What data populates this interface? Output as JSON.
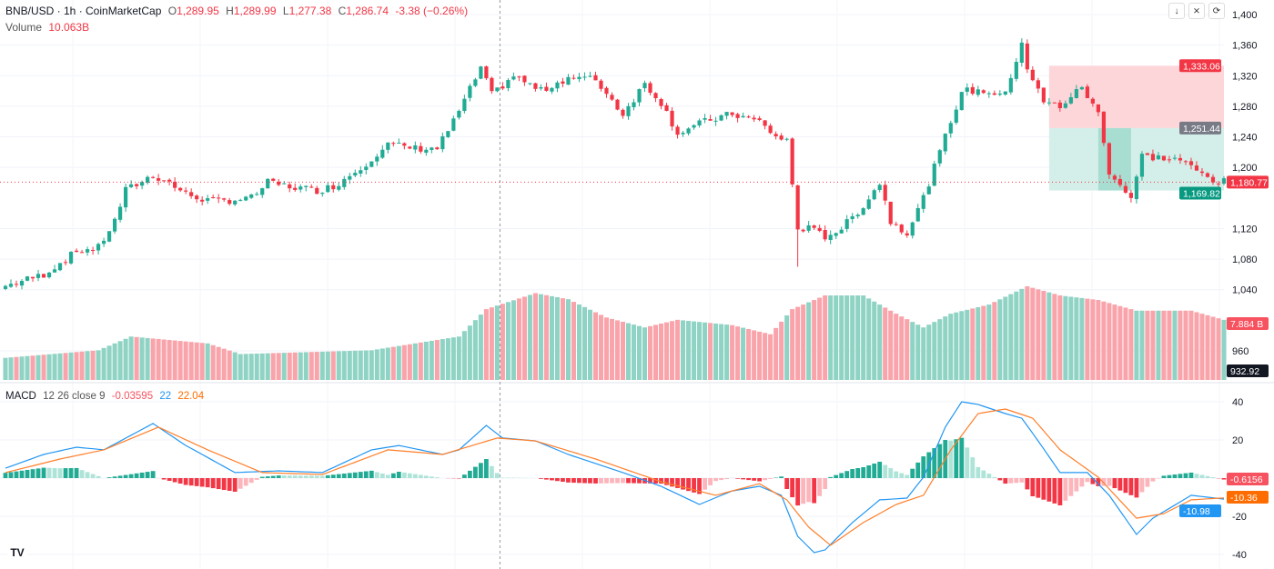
{
  "header": {
    "symbol": "BNB/USD · 1h · CoinMarketCap",
    "o_label": "O",
    "o": "1,289.95",
    "h_label": "H",
    "h": "1,289.99",
    "l_label": "L",
    "l": "1,277.38",
    "c_label": "C",
    "c": "1,286.74",
    "change": "-3.38 (−0.26%)",
    "volume_label": "Volume",
    "volume": "10.063B"
  },
  "macd_legend": {
    "label": "MACD",
    "params": "12 26 close 9",
    "hist": "-0.03595",
    "macd": "22",
    "signal": "22.04"
  },
  "toolbar": {
    "icons": [
      "arrow-down-icon",
      "collapse-icon",
      "refresh-icon"
    ]
  },
  "logo": "TV",
  "colors": {
    "up": "#22ab94",
    "down": "#f23645",
    "vol_up": "#8fd3c4",
    "vol_down": "#f9a3aa",
    "macd": "#2196f3",
    "signal": "#ff7f2a",
    "profit": "#d4efe9",
    "loss": "#fcd6d9"
  },
  "chart_data": [
    {
      "type": "candlestick",
      "title": "BNB/USD 1h",
      "ylim": [
        935,
        1410
      ],
      "yticks": [
        960,
        1040,
        1080,
        1120,
        1200,
        1240,
        1280,
        1320,
        1360,
        1400
      ],
      "ytick_labels": [
        "960",
        "1,040",
        "1,080",
        "1,120",
        "1,200",
        "1,240",
        "1,280",
        "1,320",
        "1,360",
        "1,400"
      ],
      "candles": 224,
      "close_keypoints": [
        [
          0,
          1045
        ],
        [
          7,
          1060
        ],
        [
          13,
          1090
        ],
        [
          17,
          1095
        ],
        [
          20,
          1130
        ],
        [
          22,
          1170
        ],
        [
          27,
          1190
        ],
        [
          30,
          1180
        ],
        [
          33,
          1165
        ],
        [
          38,
          1155
        ],
        [
          45,
          1160
        ],
        [
          48,
          1180
        ],
        [
          52,
          1175
        ],
        [
          57,
          1170
        ],
        [
          60,
          1175
        ],
        [
          65,
          1200
        ],
        [
          70,
          1230
        ],
        [
          75,
          1225
        ],
        [
          79,
          1225
        ],
        [
          82,
          1260
        ],
        [
          87,
          1330
        ],
        [
          89,
          1295
        ],
        [
          93,
          1320
        ],
        [
          98,
          1300
        ],
        [
          103,
          1318
        ],
        [
          108,
          1315
        ],
        [
          113,
          1270
        ],
        [
          117,
          1310
        ],
        [
          120,
          1285
        ],
        [
          123,
          1245
        ],
        [
          128,
          1260
        ],
        [
          133,
          1270
        ],
        [
          138,
          1260
        ],
        [
          141,
          1240
        ],
        [
          143,
          1235
        ],
        [
          145,
          1120
        ],
        [
          147,
          1120
        ],
        [
          150,
          1110
        ],
        [
          153,
          1120
        ],
        [
          157,
          1150
        ],
        [
          160,
          1180
        ],
        [
          162,
          1130
        ],
        [
          165,
          1115
        ],
        [
          168,
          1160
        ],
        [
          172,
          1240
        ],
        [
          175,
          1300
        ],
        [
          179,
          1300
        ],
        [
          183,
          1295
        ],
        [
          186,
          1365
        ],
        [
          187,
          1330
        ],
        [
          190,
          1285
        ],
        [
          193,
          1280
        ],
        [
          197,
          1305
        ],
        [
          200,
          1270
        ],
        [
          202,
          1195
        ],
        [
          206,
          1160
        ],
        [
          208,
          1215
        ],
        [
          212,
          1212
        ],
        [
          215,
          1210
        ],
        [
          218,
          1195
        ],
        [
          222,
          1181
        ]
      ],
      "position": {
        "start": 191,
        "end": 223,
        "stop": 1333.06,
        "entry": 1251.44,
        "target": 1169.82,
        "stop_label": "1,333.06",
        "entry_label": "1,251.44",
        "target_label": "1,169.82"
      },
      "last_price": 1180.77,
      "last_price_label": "1,180.77",
      "crosshair_index": 90.5,
      "crosshair_label": "932.92"
    },
    {
      "type": "bar",
      "title": "Volume (B)",
      "last_label": "7.884 B",
      "keypoints": [
        [
          0,
          2.9
        ],
        [
          17,
          3.9
        ],
        [
          23,
          5.7
        ],
        [
          37,
          4.8
        ],
        [
          43,
          3.4
        ],
        [
          67,
          3.9
        ],
        [
          83,
          5.7
        ],
        [
          88,
          9.3
        ],
        [
          97,
          11.4
        ],
        [
          103,
          10.6
        ],
        [
          110,
          8.2
        ],
        [
          117,
          6.9
        ],
        [
          123,
          7.9
        ],
        [
          133,
          7.2
        ],
        [
          140,
          6.0
        ],
        [
          144,
          9.3
        ],
        [
          150,
          11.1
        ],
        [
          157,
          11.1
        ],
        [
          163,
          8.7
        ],
        [
          168,
          6.9
        ],
        [
          173,
          8.7
        ],
        [
          180,
          9.9
        ],
        [
          187,
          12.3
        ],
        [
          193,
          11.1
        ],
        [
          200,
          10.5
        ],
        [
          207,
          9.1
        ],
        [
          217,
          9.1
        ],
        [
          223,
          7.9
        ]
      ]
    },
    {
      "type": "line",
      "title": "MACD 12 26 close 9",
      "ylim": [
        -45,
        45
      ],
      "yticks": [
        40,
        20,
        -20,
        -40
      ],
      "ytick_labels": [
        "40",
        "20",
        "-20",
        "-40"
      ],
      "hist_label": "-0.6156",
      "signal_label": "-10.36",
      "macd_label": "-10.98",
      "macd_keypoints": [
        [
          0,
          5.2
        ],
        [
          7,
          12.4
        ],
        [
          13,
          16.2
        ],
        [
          18,
          14.8
        ],
        [
          27,
          28.6
        ],
        [
          33,
          17.1
        ],
        [
          42,
          2.9
        ],
        [
          50,
          3.8
        ],
        [
          58,
          2.9
        ],
        [
          67,
          14.8
        ],
        [
          72,
          17.1
        ],
        [
          80,
          12.4
        ],
        [
          83,
          14.8
        ],
        [
          88,
          27.6
        ],
        [
          91,
          21
        ],
        [
          97,
          19.5
        ],
        [
          103,
          12.4
        ],
        [
          113,
          2.9
        ],
        [
          120,
          -4.3
        ],
        [
          127,
          -13.8
        ],
        [
          133,
          -6.7
        ],
        [
          138,
          -4.3
        ],
        [
          142,
          -9
        ],
        [
          145,
          -30.5
        ],
        [
          148,
          -39
        ],
        [
          150,
          -37.6
        ],
        [
          155,
          -23.3
        ],
        [
          160,
          -11.4
        ],
        [
          165,
          -10.5
        ],
        [
          168,
          0.5
        ],
        [
          172,
          26.7
        ],
        [
          175,
          40
        ],
        [
          178,
          38.6
        ],
        [
          183,
          33.8
        ],
        [
          186,
          31.4
        ],
        [
          189,
          19.5
        ],
        [
          193,
          2.9
        ],
        [
          198,
          2.9
        ],
        [
          202,
          -9
        ],
        [
          207,
          -29.5
        ],
        [
          210,
          -21
        ],
        [
          217,
          -9
        ],
        [
          223,
          -10.98
        ]
      ],
      "signal_keypoints": [
        [
          0,
          2.9
        ],
        [
          10,
          10
        ],
        [
          18,
          14.8
        ],
        [
          28,
          26.7
        ],
        [
          37,
          14.8
        ],
        [
          47,
          2.9
        ],
        [
          58,
          1.9
        ],
        [
          70,
          14.8
        ],
        [
          80,
          12.4
        ],
        [
          90,
          21
        ],
        [
          97,
          19.5
        ],
        [
          108,
          10
        ],
        [
          120,
          -1.9
        ],
        [
          130,
          -9
        ],
        [
          138,
          -2.9
        ],
        [
          143,
          -11.4
        ],
        [
          147,
          -25.7
        ],
        [
          151,
          -35.2
        ],
        [
          157,
          -23.3
        ],
        [
          163,
          -13.8
        ],
        [
          168,
          -9
        ],
        [
          173,
          14.8
        ],
        [
          178,
          33.8
        ],
        [
          183,
          36.2
        ],
        [
          188,
          31.4
        ],
        [
          193,
          14.8
        ],
        [
          200,
          0.5
        ],
        [
          207,
          -21
        ],
        [
          212,
          -18.6
        ],
        [
          217,
          -11.4
        ],
        [
          223,
          -10.36
        ]
      ]
    }
  ]
}
